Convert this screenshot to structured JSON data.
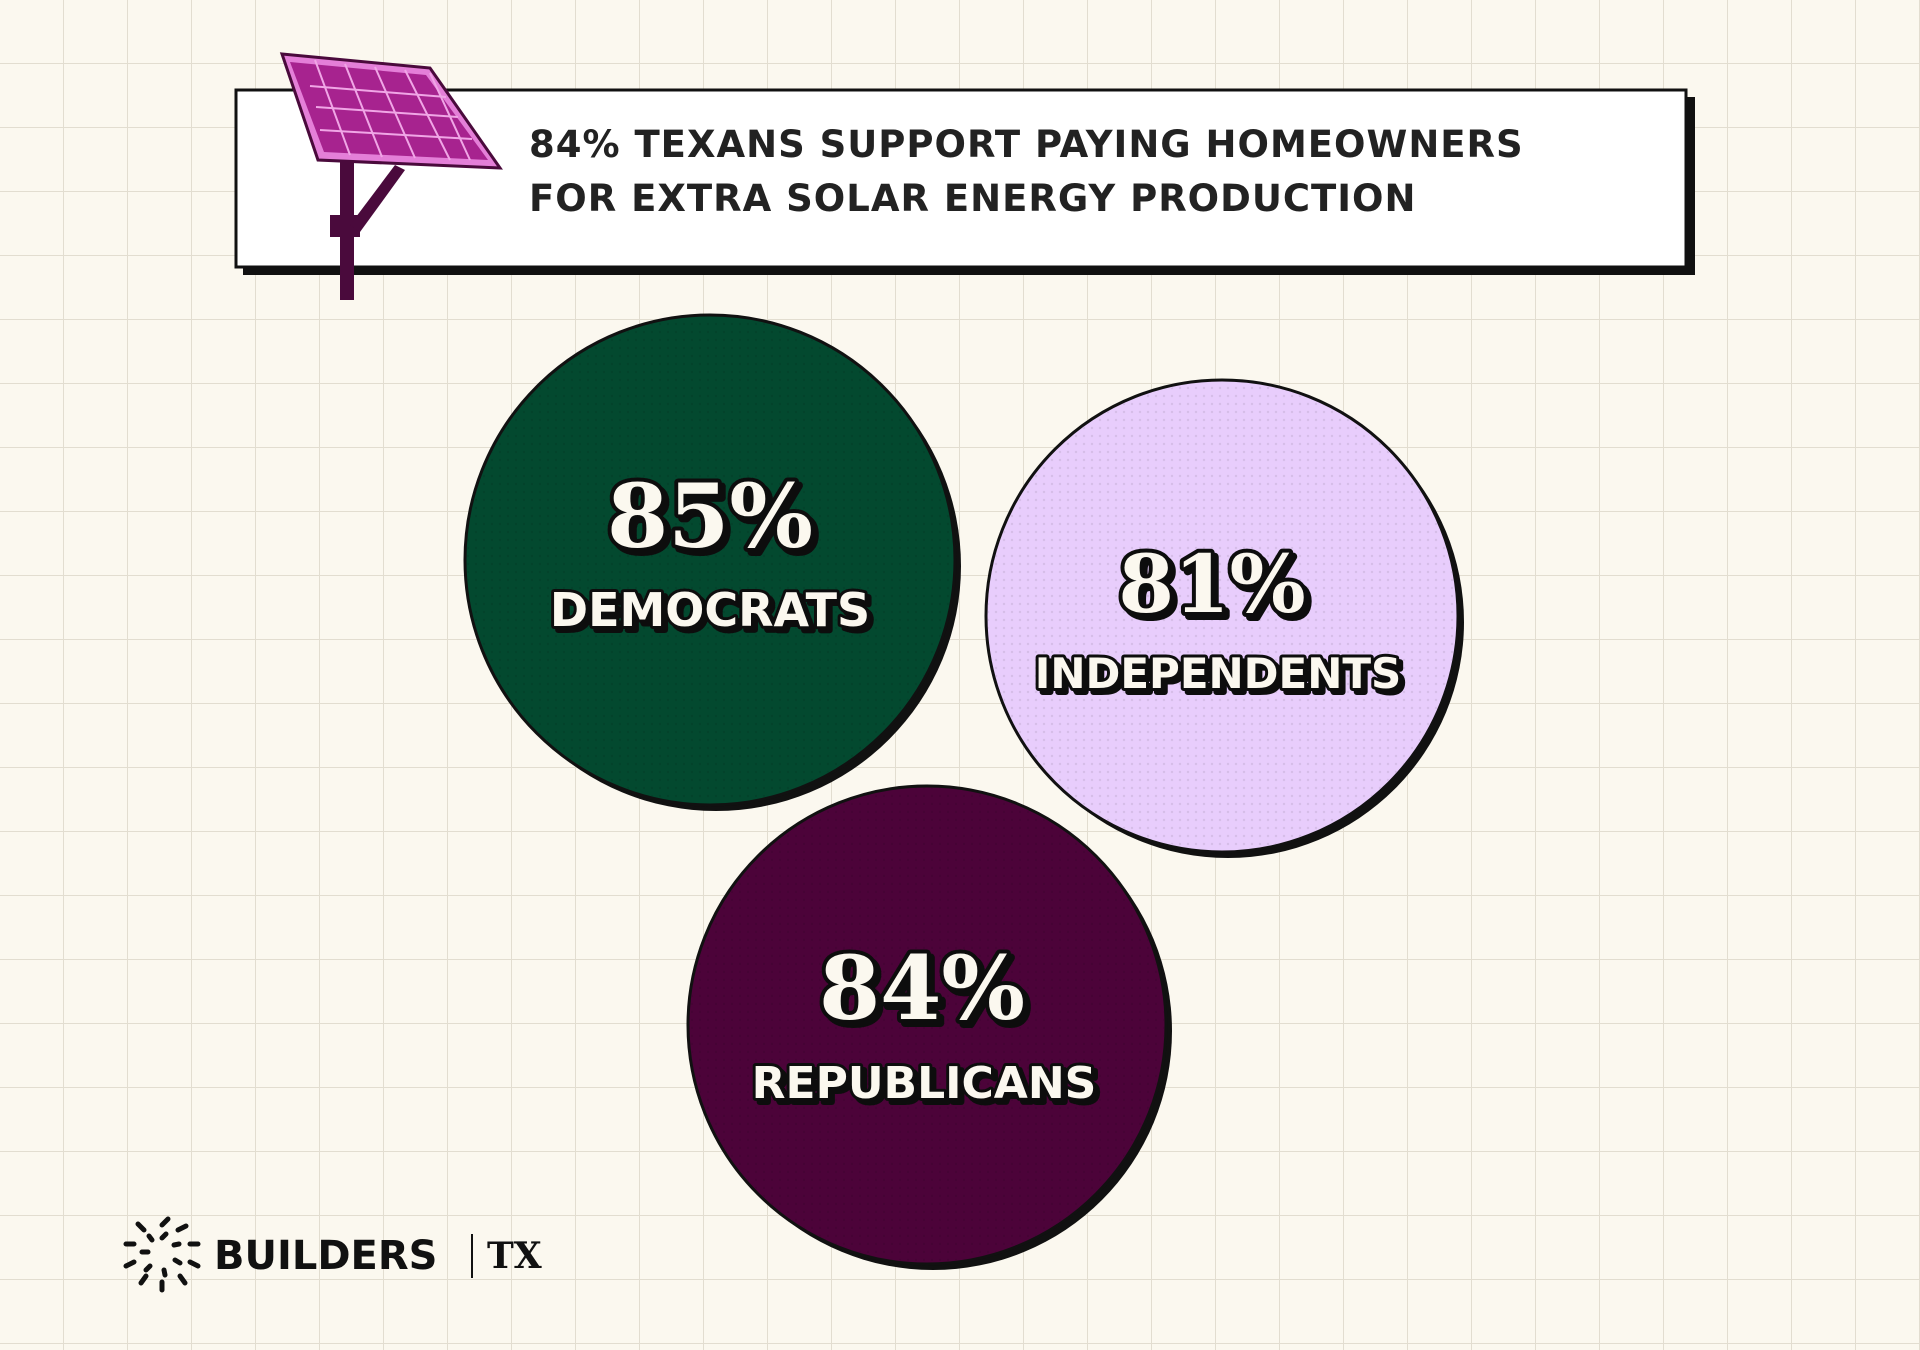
{
  "title": [
    "84% TEXANS SUPPORT PAYING HOMEOWNERS",
    "FOR EXTRA SOLAR ENERGY PRODUCTION"
  ],
  "groups": [
    {
      "value": "85%",
      "label": "DEMOCRATS"
    },
    {
      "value": "81%",
      "label": "INDEPENDENTS"
    },
    {
      "value": "84%",
      "label": "REPUBLICANS"
    }
  ],
  "logo": {
    "name": "BUILDERS",
    "region": "TX"
  }
}
